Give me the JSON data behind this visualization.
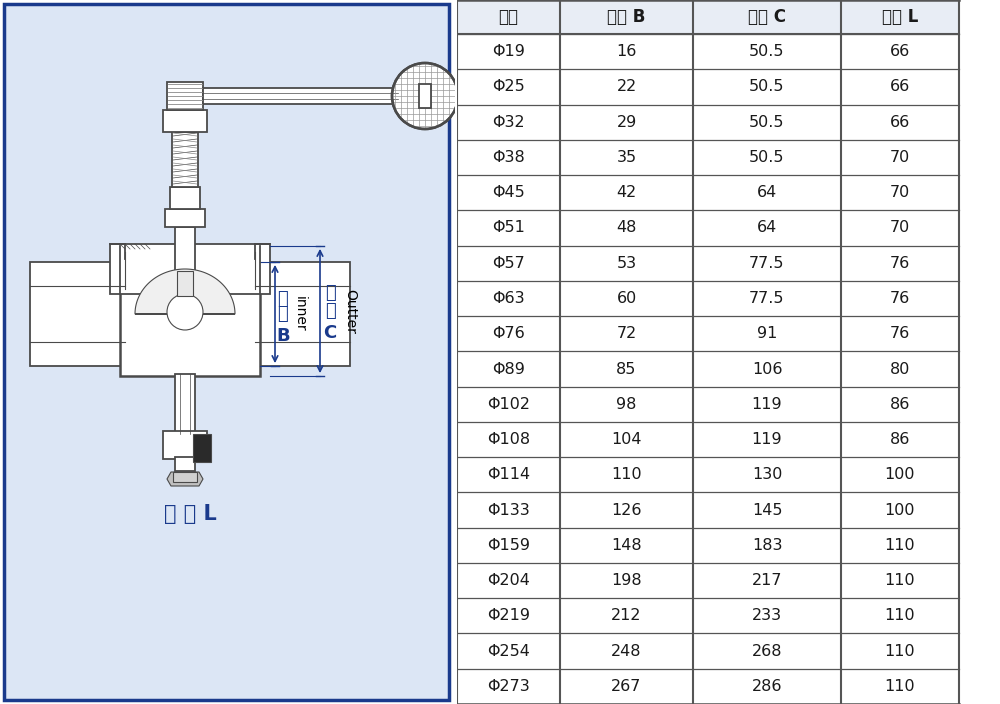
{
  "table_headers": [
    "规格",
    "内径 B",
    "卡盘 C",
    "长度 L"
  ],
  "table_data": [
    [
      "Φ19",
      "16",
      "50.5",
      "66"
    ],
    [
      "Φ25",
      "22",
      "50.5",
      "66"
    ],
    [
      "Φ32",
      "29",
      "50.5",
      "66"
    ],
    [
      "Φ38",
      "35",
      "50.5",
      "70"
    ],
    [
      "Φ45",
      "42",
      "64",
      "70"
    ],
    [
      "Φ51",
      "48",
      "64",
      "70"
    ],
    [
      "Φ57",
      "53",
      "77.5",
      "76"
    ],
    [
      "Φ63",
      "60",
      "77.5",
      "76"
    ],
    [
      "Φ76",
      "72",
      "91",
      "76"
    ],
    [
      "Φ89",
      "85",
      "106",
      "80"
    ],
    [
      "Φ102",
      "98",
      "119",
      "86"
    ],
    [
      "Φ108",
      "104",
      "119",
      "86"
    ],
    [
      "Φ114",
      "110",
      "130",
      "100"
    ],
    [
      "Φ133",
      "126",
      "145",
      "100"
    ],
    [
      "Φ159",
      "148",
      "183",
      "110"
    ],
    [
      "Φ204",
      "198",
      "217",
      "110"
    ],
    [
      "Φ219",
      "212",
      "233",
      "110"
    ],
    [
      "Φ254",
      "248",
      "268",
      "110"
    ],
    [
      "Φ273",
      "267",
      "286",
      "110"
    ]
  ],
  "border_color": "#1a3a8c",
  "text_color_blue": "#1a3a8c",
  "text_color_black": "#1a1a1a",
  "bg_color": "#dce6f5",
  "line_color": "#4a4a4a",
  "table_line_color": "#555555",
  "label_inner_zh": "内径",
  "label_inner_en": "inner",
  "label_outer_zh": "卡盘",
  "label_outer_en": "Outter",
  "label_b": "B",
  "label_c": "C",
  "label_length": "长 度 L"
}
